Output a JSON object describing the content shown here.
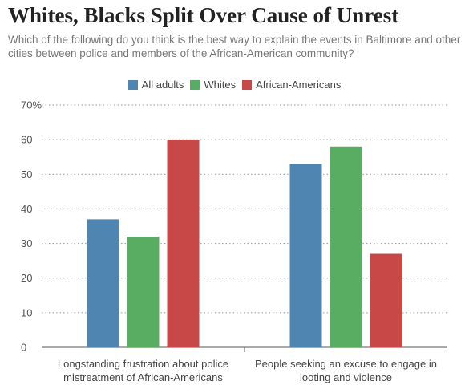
{
  "chart_data": {
    "type": "bar",
    "title": "Whites, Blacks Split Over Cause of Unrest",
    "subtitle": "Which of the following do you think is the best way to explain the events in Baltimore and other cities between police and members of the African-American community?",
    "categories": [
      [
        "Longstanding frustration about police",
        "mistreatment of African-Americans"
      ],
      [
        "People seeking an excuse to engage in",
        "looting and violence"
      ]
    ],
    "series": [
      {
        "name": "All adults",
        "color": "#4f86b1",
        "values": [
          37,
          53
        ]
      },
      {
        "name": "Whites",
        "color": "#59ad62",
        "values": [
          32,
          58
        ]
      },
      {
        "name": "African-Americans",
        "color": "#c84848",
        "values": [
          60,
          27
        ]
      }
    ],
    "ylim": [
      0,
      70
    ],
    "yticks": [
      0,
      10,
      20,
      30,
      40,
      50,
      60,
      70
    ],
    "ytick_labels": [
      "0",
      "10",
      "20",
      "30",
      "40",
      "50",
      "60",
      "70%"
    ],
    "grid": true,
    "legend": "top-center"
  }
}
